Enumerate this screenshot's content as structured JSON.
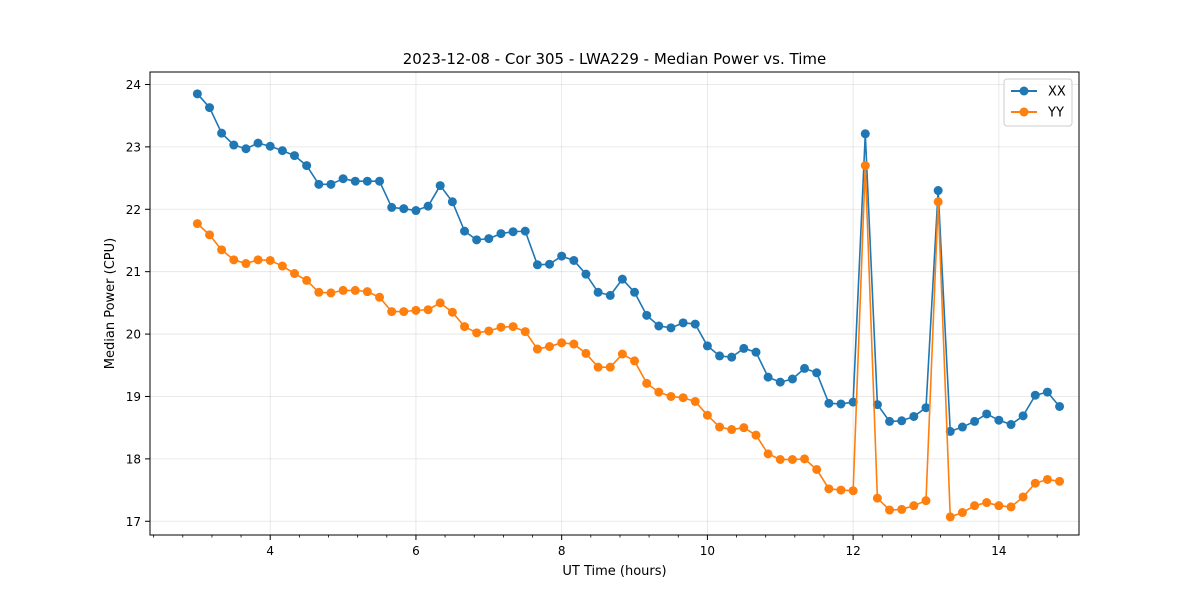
{
  "chart_data": {
    "type": "line",
    "title": "2023-12-08 - Cor 305 - LWA229 - Median Power vs. Time",
    "xlabel": "UT Time (hours)",
    "ylabel": "Median Power (CPU)",
    "xlim": [
      2.35,
      15.1
    ],
    "ylim": [
      16.78,
      24.2
    ],
    "xticks": [
      4,
      6,
      8,
      10,
      12,
      14
    ],
    "xtick_labels": [
      "4",
      "6",
      "8",
      "10",
      "12",
      "14"
    ],
    "xminor_step": 0.4,
    "yticks": [
      17,
      18,
      19,
      20,
      21,
      22,
      23,
      24
    ],
    "ytick_labels": [
      "17",
      "18",
      "19",
      "20",
      "21",
      "22",
      "23",
      "24"
    ],
    "grid": true,
    "legend": "top-right",
    "x": [
      3.0,
      3.167,
      3.333,
      3.5,
      3.667,
      3.833,
      4.0,
      4.167,
      4.333,
      4.5,
      4.667,
      4.833,
      5.0,
      5.167,
      5.333,
      5.5,
      5.667,
      5.833,
      6.0,
      6.167,
      6.333,
      6.5,
      6.667,
      6.833,
      7.0,
      7.167,
      7.333,
      7.5,
      7.667,
      7.833,
      8.0,
      8.167,
      8.333,
      8.5,
      8.667,
      8.833,
      9.0,
      9.167,
      9.333,
      9.5,
      9.667,
      9.833,
      10.0,
      10.167,
      10.333,
      10.5,
      10.667,
      10.833,
      11.0,
      11.167,
      11.333,
      11.5,
      11.667,
      11.833,
      12.0,
      12.167,
      12.333,
      12.5,
      12.667,
      12.833,
      13.0,
      13.167,
      13.333,
      13.5,
      13.667,
      13.833,
      14.0,
      14.167,
      14.333,
      14.5,
      14.667,
      14.833
    ],
    "series": [
      {
        "name": "XX",
        "color": "#1f77b4",
        "values": [
          23.85,
          23.63,
          23.22,
          23.03,
          22.97,
          23.06,
          23.01,
          22.94,
          22.86,
          22.7,
          22.4,
          22.4,
          22.49,
          22.45,
          22.45,
          22.45,
          22.03,
          22.01,
          21.98,
          22.05,
          22.38,
          22.12,
          21.65,
          21.51,
          21.53,
          21.61,
          21.64,
          21.65,
          21.11,
          21.12,
          21.25,
          21.18,
          20.96,
          20.67,
          20.62,
          20.88,
          20.67,
          20.3,
          20.13,
          20.1,
          20.18,
          20.16,
          19.81,
          19.65,
          19.63,
          19.77,
          19.71,
          19.31,
          19.23,
          19.28,
          19.45,
          19.38,
          18.89,
          18.88,
          18.91,
          23.21,
          18.87,
          18.6,
          18.61,
          18.68,
          18.82,
          22.3,
          18.44,
          18.51,
          18.6,
          18.72,
          18.62,
          18.55,
          18.69,
          19.02,
          19.07,
          18.84
        ]
      },
      {
        "name": "YY",
        "color": "#ff7f0e",
        "values": [
          21.77,
          21.59,
          21.35,
          21.19,
          21.13,
          21.19,
          21.18,
          21.09,
          20.97,
          20.86,
          20.67,
          20.66,
          20.7,
          20.7,
          20.68,
          20.59,
          20.36,
          20.36,
          20.38,
          20.39,
          20.5,
          20.35,
          20.12,
          20.02,
          20.05,
          20.11,
          20.12,
          20.04,
          19.76,
          19.8,
          19.86,
          19.84,
          19.69,
          19.47,
          19.47,
          19.68,
          19.57,
          19.21,
          19.07,
          19.0,
          18.98,
          18.92,
          18.7,
          18.51,
          18.47,
          18.5,
          18.38,
          18.08,
          17.99,
          17.99,
          18.0,
          17.83,
          17.52,
          17.5,
          17.49,
          22.7,
          17.37,
          17.18,
          17.19,
          17.25,
          17.33,
          22.12,
          17.07,
          17.14,
          17.25,
          17.3,
          17.25,
          17.23,
          17.39,
          17.61,
          17.67,
          17.64
        ]
      }
    ]
  }
}
